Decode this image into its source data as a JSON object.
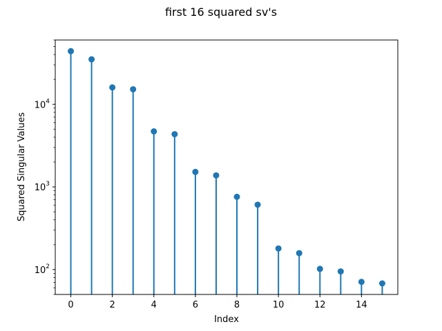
{
  "chart_data": {
    "type": "stem",
    "title": "first 16 squared sv's",
    "xlabel": "Index",
    "ylabel": "Squared Singular Values",
    "yscale": "log",
    "xlim": [
      -0.75,
      15.75
    ],
    "ylim": [
      50,
      60000
    ],
    "x_ticks": [
      0,
      2,
      4,
      6,
      8,
      10,
      12,
      14
    ],
    "y_major_ticks": [
      {
        "base": "10",
        "exp": "2",
        "value": 100
      },
      {
        "base": "10",
        "exp": "3",
        "value": 1000
      },
      {
        "base": "10",
        "exp": "4",
        "value": 10000
      }
    ],
    "x": [
      0,
      1,
      2,
      3,
      4,
      5,
      6,
      7,
      8,
      9,
      10,
      11,
      12,
      13,
      14,
      15
    ],
    "values": [
      44000,
      35000,
      16000,
      15200,
      4700,
      4350,
      1520,
      1380,
      760,
      610,
      180,
      158,
      102,
      95,
      71,
      68
    ],
    "color": "#1f77b4",
    "grid": false
  }
}
